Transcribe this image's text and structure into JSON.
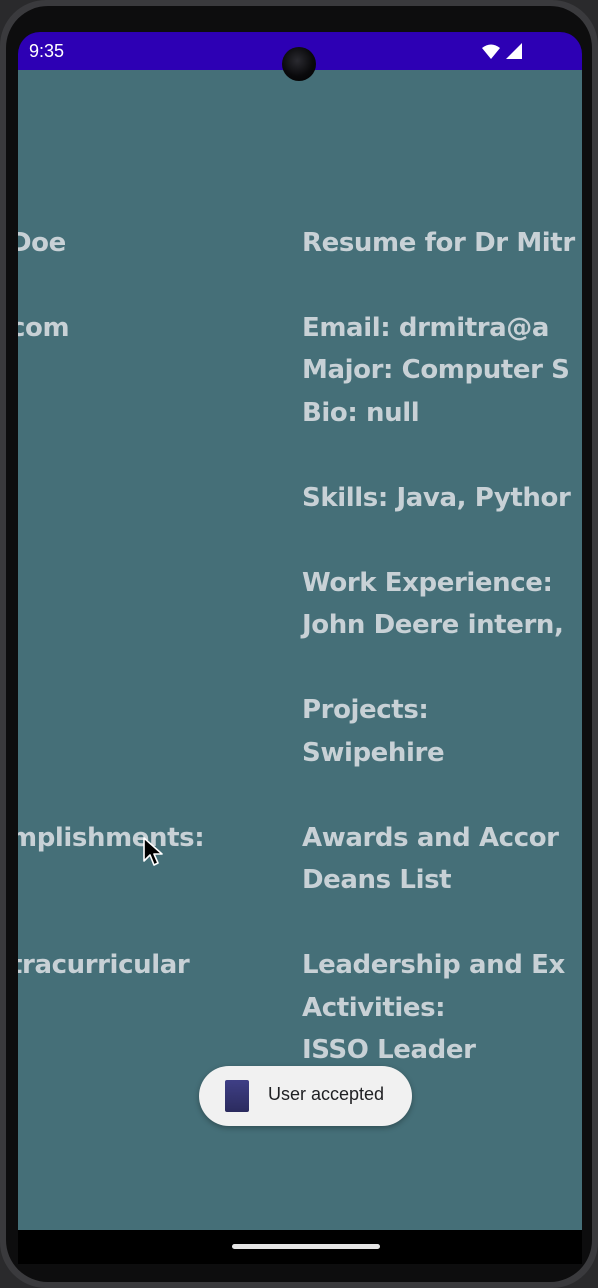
{
  "status_bar": {
    "time": "9:35",
    "icons": [
      "wifi-icon",
      "cellular-signal-icon"
    ],
    "background": "#2d00b4"
  },
  "app": {
    "background": "#456f78",
    "text_color": "#c8d1d6",
    "left_column": {
      "name": "Doe",
      "email": "com",
      "accomplishments": "mplishments:",
      "extracurricular": "tracurricular"
    },
    "right_column": {
      "title": "Resume for Dr Mitr",
      "email": "Email: drmitra@a",
      "major": "Major: Computer S",
      "bio": "Bio: null",
      "skills": "Skills: Java, Pythor",
      "work_heading": "Work Experience:",
      "work_value": "John Deere intern,",
      "projects_heading": "Projects:",
      "projects_value": "Swipehire",
      "awards_heading": "Awards and Accor",
      "awards_value": "Deans List",
      "leadership_heading": "Leadership and Ex",
      "leadership_heading_2": "Activities:",
      "leadership_value": "ISSO Leader"
    }
  },
  "toast": {
    "message": "User accepted"
  }
}
